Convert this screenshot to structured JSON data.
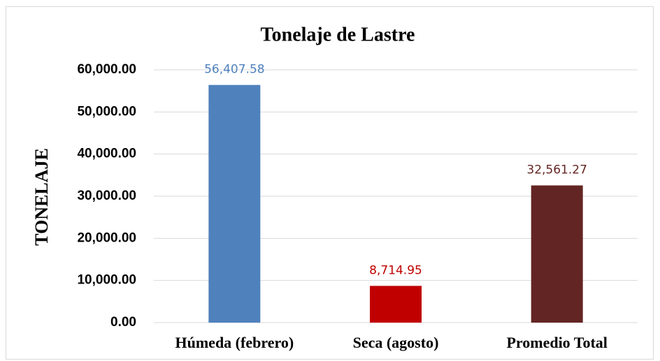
{
  "chart_data": {
    "type": "bar",
    "title": "Tonelaje de Lastre",
    "ylabel": "TONELAJE",
    "categories": [
      "Húmeda (febrero)",
      "Seca (agosto)",
      "Promedio Total"
    ],
    "values": [
      56407.58,
      8714.95,
      32561.27
    ],
    "value_labels": [
      "56,407.58",
      "8,714.95",
      "32,561.27"
    ],
    "colors": [
      "#4f81bd",
      "#c00000",
      "#632523"
    ],
    "ylim": [
      0,
      60000
    ],
    "yticks": [
      {
        "value": 0,
        "label": "0.00"
      },
      {
        "value": 10000,
        "label": "10,000.00"
      },
      {
        "value": 20000,
        "label": "20,000.00"
      },
      {
        "value": 30000,
        "label": "30,000.00"
      },
      {
        "value": 40000,
        "label": "40,000.00"
      },
      {
        "value": 50000,
        "label": "50,000.00"
      },
      {
        "value": 60000,
        "label": "60,000.00"
      }
    ],
    "grid": true
  }
}
